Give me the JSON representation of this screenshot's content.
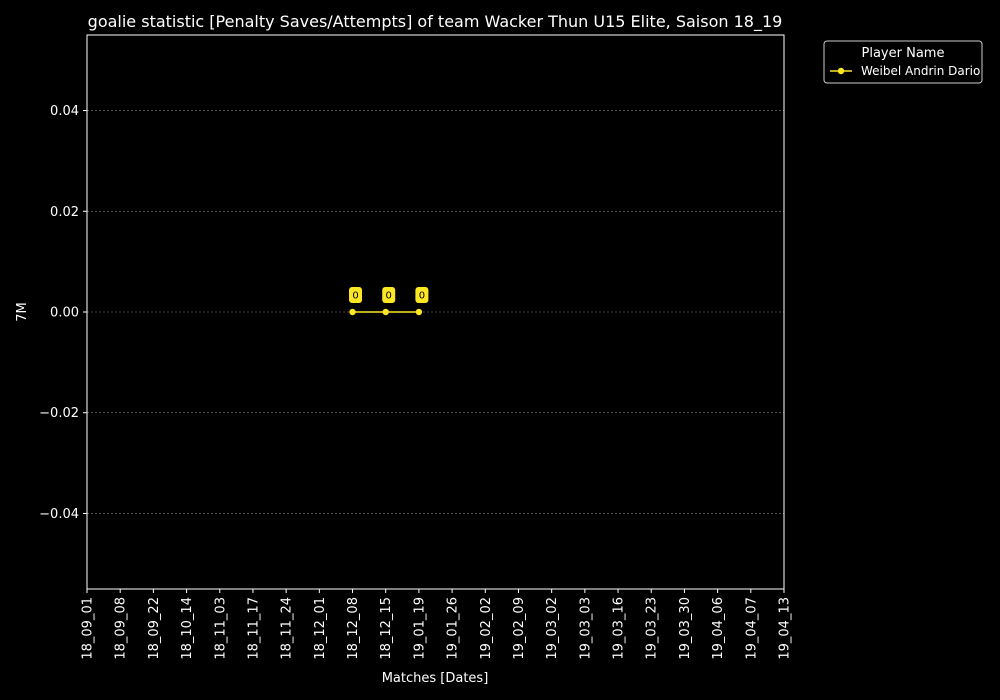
{
  "chart_data": {
    "type": "line",
    "title": "goalie statistic [Penalty Saves/Attempts] of team Wacker Thun U15 Elite, Saison 18_19",
    "xlabel": "Matches [Dates]",
    "ylabel": "7M",
    "categories": [
      "18_09_01",
      "18_09_08",
      "18_09_22",
      "18_10_14",
      "18_11_03",
      "18_11_17",
      "18_11_24",
      "18_12_01",
      "18_12_08",
      "18_12_15",
      "19_01_19",
      "19_01_26",
      "19_02_02",
      "19_02_09",
      "19_03_02",
      "19_03_03",
      "19_03_16",
      "19_03_23",
      "19_03_30",
      "19_04_06",
      "19_04_07",
      "19_04_13"
    ],
    "yticks": [
      -0.04,
      -0.02,
      0.0,
      0.02,
      0.04
    ],
    "ytick_labels": [
      "−0.04",
      "−0.02",
      "0.00",
      "0.02",
      "0.04"
    ],
    "ylim": [
      -0.055,
      0.055
    ],
    "grid": true,
    "legend": {
      "title": "Player Name",
      "placement": "outside-top-right"
    },
    "series": [
      {
        "name": "Weibel Andrin Dario",
        "color": "#fde725",
        "points": [
          {
            "x": "18_12_08",
            "y": 0,
            "label": "0"
          },
          {
            "x": "18_12_15",
            "y": 0,
            "label": "0"
          },
          {
            "x": "19_01_19",
            "y": 0,
            "label": "0"
          }
        ]
      }
    ]
  }
}
